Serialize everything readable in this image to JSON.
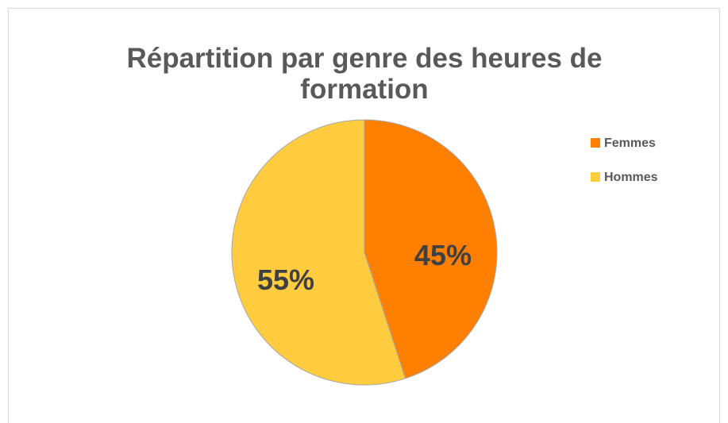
{
  "chart_data": {
    "type": "pie",
    "title": "Répartition par genre des heures de formation",
    "categories": [
      "Femmes",
      "Hommes"
    ],
    "values": [
      45,
      55
    ],
    "value_labels": [
      "45%",
      "55%"
    ],
    "colors": [
      "#ff8000",
      "#ffcc40"
    ],
    "legend": "right"
  }
}
